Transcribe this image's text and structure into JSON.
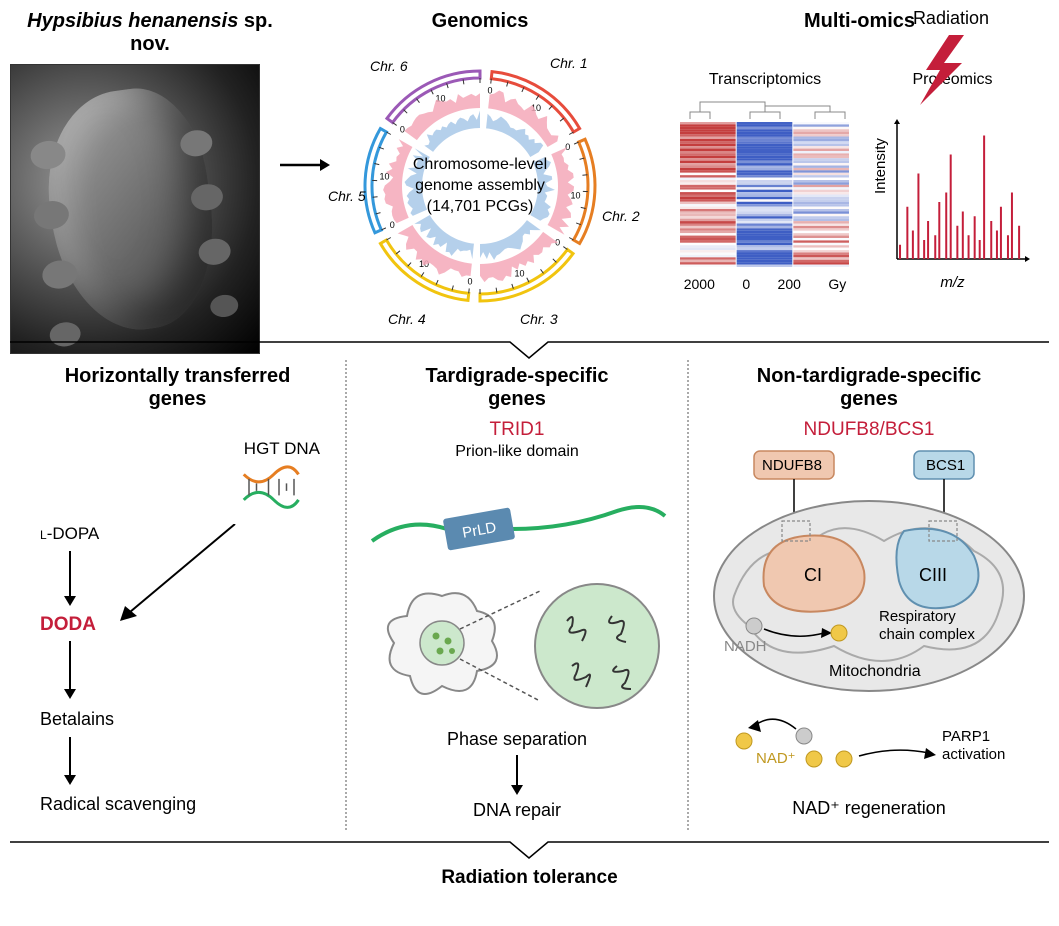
{
  "top": {
    "species": "Hypsibius henanensis",
    "species_suffix": "sp. nov.",
    "genomics_title": "Genomics",
    "multiomics_title": "Multi-omics",
    "circos": {
      "center_line1": "Chromosome-level",
      "center_line2": "genome assembly",
      "center_line3": "(14,701 PCGs)",
      "chromosomes": [
        "Chr. 1",
        "Chr. 2",
        "Chr. 3",
        "Chr. 4",
        "Chr. 5",
        "Chr. 6"
      ],
      "tick_labels": [
        "0",
        "10"
      ],
      "arc_colors": [
        "#e74c3c",
        "#e67e22",
        "#f1c40f",
        "#f1c40f",
        "#3498db",
        "#9b59b6"
      ],
      "inner_pink": "#f4a8b8",
      "inner_blue": "#a8c8e8"
    },
    "radiation_label": "Radiation",
    "radiation_color": "#c41e3a",
    "transcriptomics": {
      "title": "Transcriptomics",
      "xlabels": [
        "2000",
        "0",
        "200",
        "Gy"
      ],
      "color_red": "#c43e3e",
      "color_white": "#ffffff",
      "color_blue": "#3e5ec4"
    },
    "proteomics": {
      "title": "Proteomics",
      "xlabel": "m/z",
      "ylabel": "Intensity",
      "color": "#c41e3a"
    }
  },
  "bottom": {
    "hgt": {
      "title_line1": "Horizontally transferred",
      "title_line2": "genes",
      "hgt_dna": "HGT DNA",
      "ldopa": "L-DOPA",
      "doda": "DODA",
      "betalains": "Betalains",
      "radical": "Radical scavenging",
      "dna_color1": "#e67e22",
      "dna_color2": "#27ae60"
    },
    "tardigrade": {
      "title_line1": "Tardigrade-specific",
      "title_line2": "genes",
      "trid1": "TRID1",
      "prion_label": "Prion-like domain",
      "prld": "PrLD",
      "phase_sep": "Phase separation",
      "dna_repair": "DNA repair",
      "line_color": "#27ae60",
      "prld_color": "#5b8ab0",
      "droplet_bg": "#cce8cc",
      "dot_color": "#6aa84f"
    },
    "nontardigrade": {
      "title_line1": "Non-tardigrade-specific",
      "title_line2": "genes",
      "gene_label": "NDUFB8/BCS1",
      "ndufb8": "NDUFB8",
      "bcs1": "BCS1",
      "ci": "CI",
      "ciii": "CIII",
      "nadh": "NADH",
      "resp_chain1": "Respiratory",
      "resp_chain2": "chain complex",
      "mitochondria": "Mitochondria",
      "nad_plus": "NAD⁺",
      "parp1_line1": "PARP1",
      "parp1_line2": "activation",
      "nad_regen": "NAD⁺ regeneration",
      "ndufb8_color": "#f0c8b0",
      "bcs1_color": "#b8d8e8",
      "mito_gray": "#e8e8e8",
      "nad_yellow": "#f0c848"
    }
  },
  "conclusion": "Radiation tolerance"
}
